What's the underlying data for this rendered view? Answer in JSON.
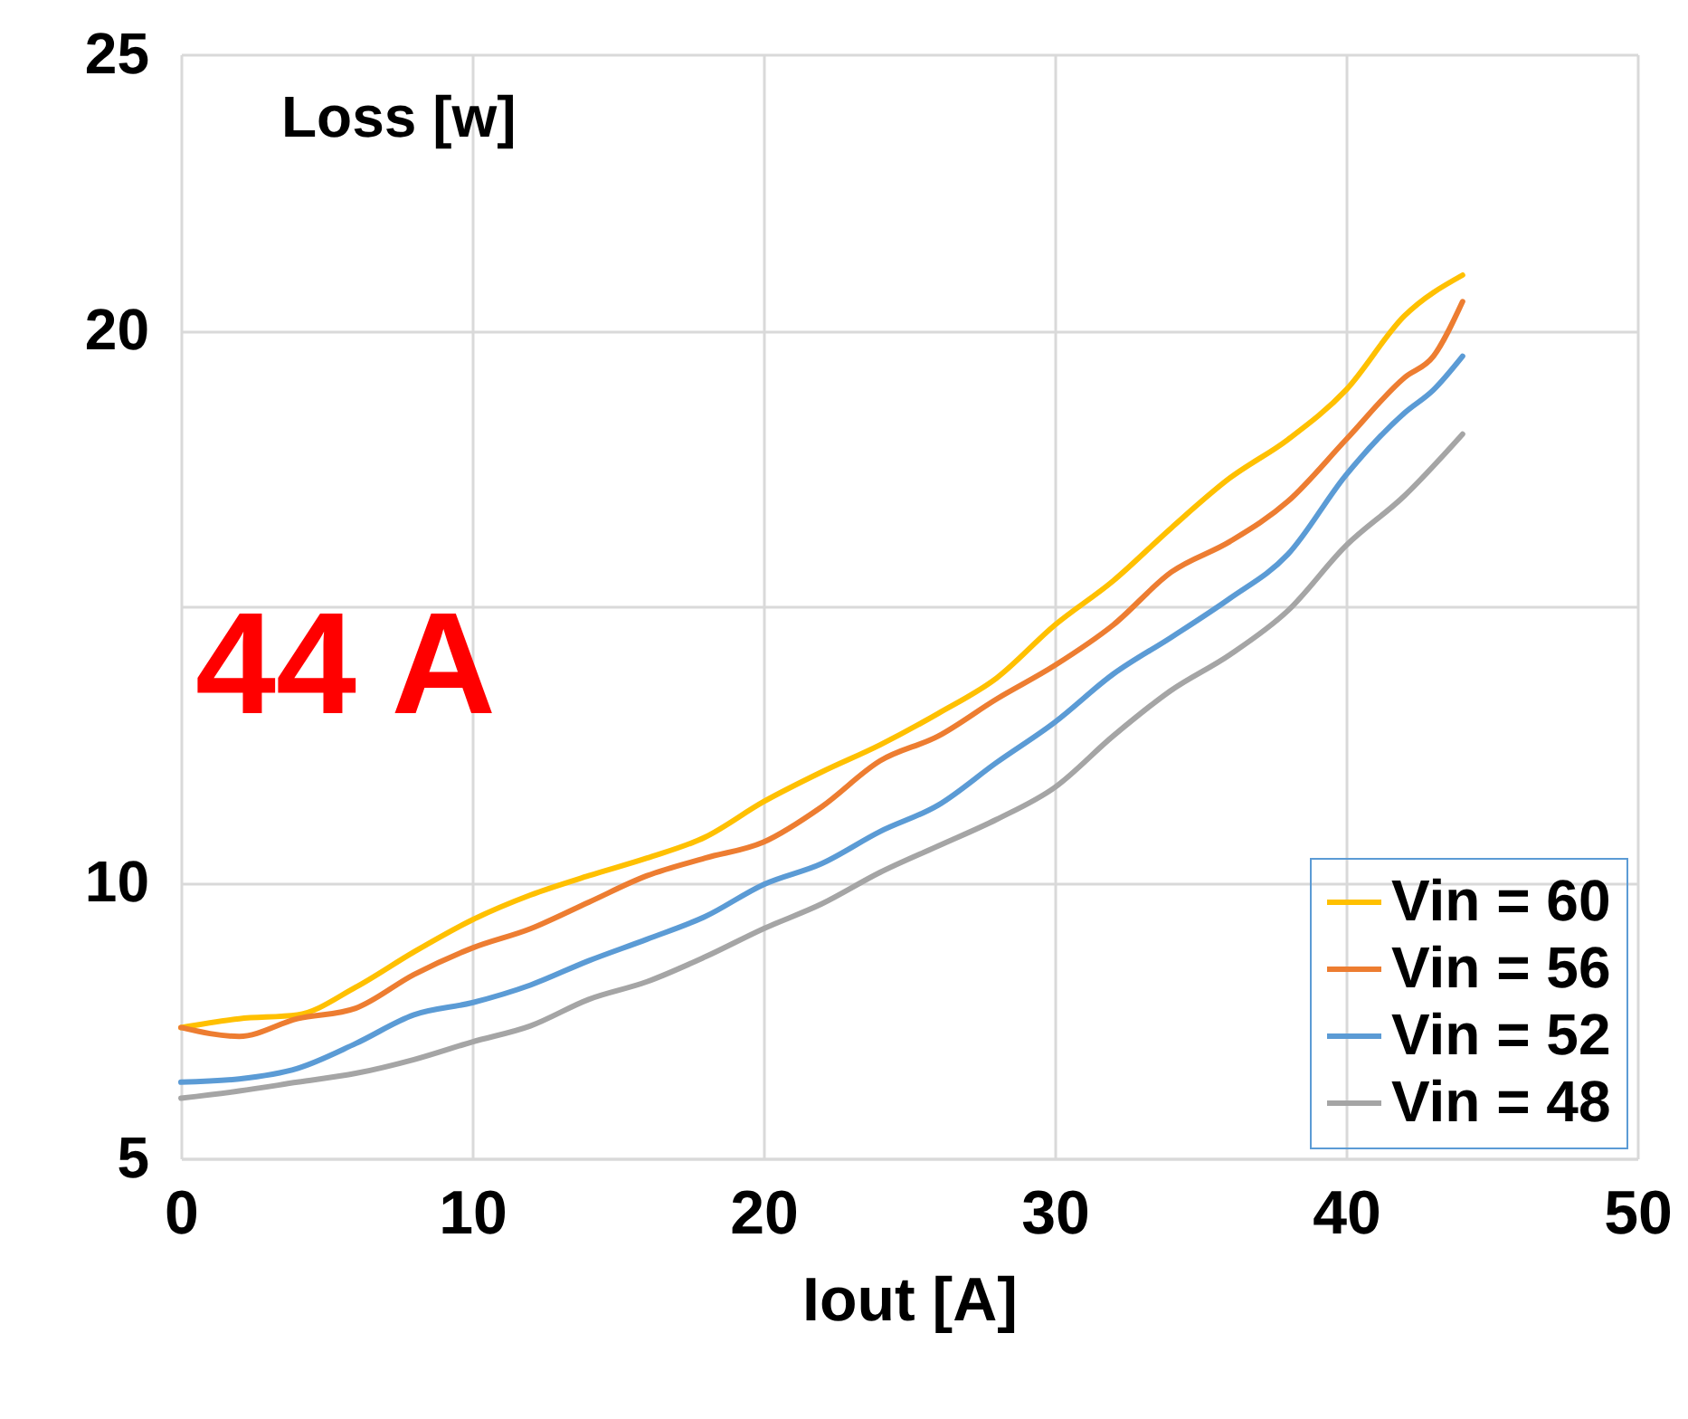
{
  "chart_data": {
    "type": "line",
    "xlabel": "Iout [A]",
    "ylabel": "Loss [w]",
    "annotations": [
      "44 A"
    ],
    "xlim": [
      0,
      50
    ],
    "xticks": [
      0,
      10,
      20,
      30,
      40,
      50
    ],
    "ylim": [
      5,
      25
    ],
    "yticks": [
      5,
      10,
      {
        "value": 15,
        "label": null
      },
      20,
      25
    ],
    "grid": true,
    "legend": "bottom right",
    "marker": "none",
    "line_style": "solid",
    "series": [
      {
        "name": "Vin = 60",
        "color": "#ffc000",
        "x": [
          0,
          2,
          4,
          6,
          8,
          10,
          12,
          14,
          16,
          18,
          20,
          22,
          24,
          26,
          28,
          30,
          32,
          34,
          36,
          38,
          40,
          42,
          44
        ],
        "values": [
          7.37,
          7.53,
          7.6,
          8.1,
          8.74,
          9.32,
          9.77,
          10.12,
          10.44,
          10.82,
          11.46,
          12.0,
          12.49,
          13.06,
          13.7,
          14.66,
          15.46,
          16.42,
          17.32,
          18.02,
          18.92,
          20.26,
          21.0
        ]
      },
      {
        "name": "Vin = 56",
        "color": "#ed7d31",
        "x": [
          0,
          2,
          4,
          6,
          8,
          10,
          12,
          14,
          16,
          18,
          20,
          22,
          24,
          26,
          28,
          30,
          32,
          34,
          36,
          38,
          40,
          42,
          43,
          44
        ],
        "values": [
          7.37,
          7.21,
          7.53,
          7.72,
          8.33,
          8.81,
          9.16,
          9.64,
          10.12,
          10.44,
          10.73,
          11.37,
          12.2,
          12.65,
          13.32,
          13.93,
          14.66,
          15.62,
          16.17,
          16.9,
          18.02,
          19.14,
          19.53,
          20.52
        ]
      },
      {
        "name": "Vin = 52",
        "color": "#5b9bd5",
        "x": [
          0,
          2,
          4,
          6,
          8,
          10,
          12,
          14,
          16,
          18,
          20,
          22,
          24,
          26,
          28,
          30,
          32,
          34,
          36,
          38,
          40,
          42,
          43,
          44
        ],
        "values": [
          6.38,
          6.44,
          6.63,
          7.08,
          7.6,
          7.82,
          8.14,
          8.58,
          8.97,
          9.38,
          9.96,
          10.34,
          10.92,
          11.4,
          12.17,
          12.9,
          13.77,
          14.44,
          15.14,
          15.94,
          17.38,
          18.5,
          18.92,
          19.53
        ]
      },
      {
        "name": "Vin = 48",
        "color": "#a5a5a5",
        "x": [
          0,
          2,
          4,
          6,
          8,
          10,
          12,
          14,
          16,
          18,
          20,
          22,
          24,
          26,
          28,
          30,
          32,
          34,
          36,
          38,
          40,
          42,
          44
        ],
        "values": [
          6.09,
          6.22,
          6.38,
          6.54,
          6.79,
          7.11,
          7.4,
          7.88,
          8.2,
          8.65,
          9.16,
          9.61,
          10.18,
          10.66,
          11.14,
          11.72,
          12.65,
          13.48,
          14.12,
          14.92,
          16.1,
          17.0,
          18.12
        ]
      }
    ]
  }
}
